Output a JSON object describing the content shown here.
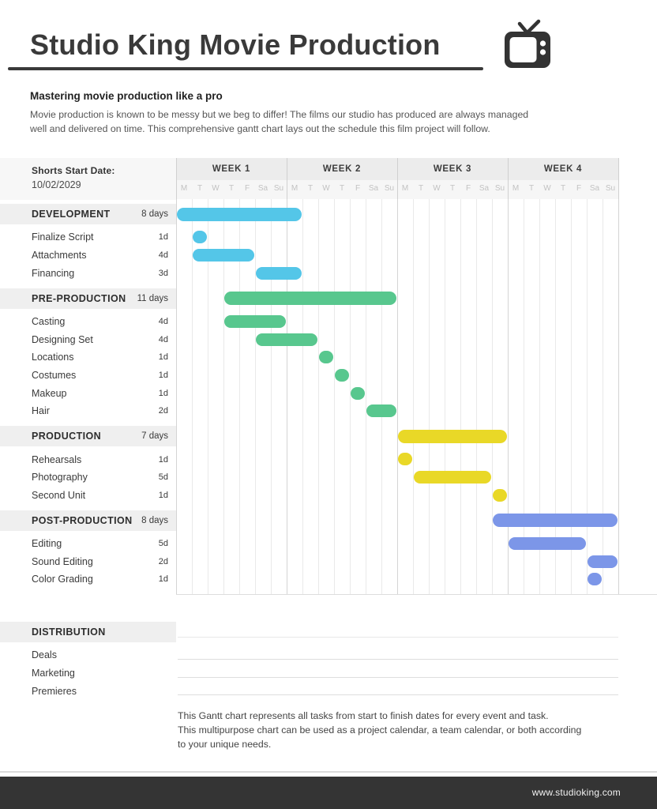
{
  "header": {
    "title": "Studio King Movie Production",
    "logo_icon": "tv-icon"
  },
  "intro": {
    "heading": "Mastering movie production like a pro",
    "body": "Movie production is known to be messy but we beg to differ! The films our studio has produced are always managed\nwell and delivered on time. This comprehensive gantt chart lays out the schedule this film project will follow."
  },
  "schedule_info": {
    "label": "Shorts Start Date:",
    "value": "10/02/2029"
  },
  "chart_data": {
    "type": "bar",
    "subtype": "gantt",
    "title": "Studio King Movie Production",
    "start_date": "10/02/2029",
    "weeks": [
      "WEEK 1",
      "WEEK 2",
      "WEEK 3",
      "WEEK 4"
    ],
    "day_labels": [
      "M",
      "T",
      "W",
      "T",
      "F",
      "Sa",
      "Su"
    ],
    "days_total": 28,
    "colors": {
      "development": "#54C6E8",
      "pre_production": "#58C78E",
      "production": "#E9D827",
      "post_production": "#7C96E8"
    },
    "rows": [
      {
        "kind": "section",
        "label": "DEVELOPMENT",
        "duration": "8 days",
        "start": 0,
        "days": 8,
        "color": "#54C6E8"
      },
      {
        "kind": "task",
        "label": "Finalize Script",
        "duration": "1d",
        "start": 1,
        "days": 1,
        "color": "#54C6E8"
      },
      {
        "kind": "task",
        "label": "Attachments",
        "duration": "4d",
        "start": 1,
        "days": 4,
        "color": "#54C6E8"
      },
      {
        "kind": "task",
        "label": "Financing",
        "duration": "3d",
        "start": 5,
        "days": 3,
        "color": "#54C6E8"
      },
      {
        "kind": "section",
        "label": "PRE-PRODUCTION",
        "duration": "11 days",
        "start": 3,
        "days": 11,
        "color": "#58C78E"
      },
      {
        "kind": "task",
        "label": "Casting",
        "duration": "4d",
        "start": 3,
        "days": 4,
        "color": "#58C78E"
      },
      {
        "kind": "task",
        "label": "Designing Set",
        "duration": "4d",
        "start": 5,
        "days": 4,
        "color": "#58C78E"
      },
      {
        "kind": "task",
        "label": "Locations",
        "duration": "1d",
        "start": 9,
        "days": 1,
        "color": "#58C78E"
      },
      {
        "kind": "task",
        "label": "Costumes",
        "duration": "1d",
        "start": 10,
        "days": 1,
        "color": "#58C78E"
      },
      {
        "kind": "task",
        "label": "Makeup",
        "duration": "1d",
        "start": 11,
        "days": 1,
        "color": "#58C78E"
      },
      {
        "kind": "task",
        "label": "Hair",
        "duration": "2d",
        "start": 12,
        "days": 2,
        "color": "#58C78E"
      },
      {
        "kind": "section",
        "label": "PRODUCTION",
        "duration": "7 days",
        "start": 14,
        "days": 7,
        "color": "#E9D827"
      },
      {
        "kind": "task",
        "label": "Rehearsals",
        "duration": "1d",
        "start": 14,
        "days": 1,
        "color": "#E9D827"
      },
      {
        "kind": "task",
        "label": "Photography",
        "duration": "5d",
        "start": 15,
        "days": 5,
        "color": "#E9D827"
      },
      {
        "kind": "task",
        "label": "Second Unit",
        "duration": "1d",
        "start": 20,
        "days": 1,
        "color": "#E9D827"
      },
      {
        "kind": "section",
        "label": "POST-PRODUCTION",
        "duration": "8 days",
        "start": 20,
        "days": 8,
        "color": "#7C96E8"
      },
      {
        "kind": "task",
        "label": "Editing",
        "duration": "5d",
        "start": 21,
        "days": 5,
        "color": "#7C96E8"
      },
      {
        "kind": "task",
        "label": "Sound Editing",
        "duration": "2d",
        "start": 26,
        "days": 2,
        "color": "#7C96E8"
      },
      {
        "kind": "task",
        "label": "Color Grading",
        "duration": "1d",
        "start": 26,
        "days": 1,
        "color": "#7C96E8"
      }
    ],
    "distribution": {
      "label": "DISTRIBUTION",
      "tasks": [
        "Deals",
        "Marketing",
        "Premieres"
      ]
    }
  },
  "note": "This Gantt chart represents all tasks from start to finish dates for every event and task.\nThis multipurpose chart can be used as a project calendar, a team calendar, or both according\nto your unique needs.",
  "footer": {
    "website": "www.studioking.com"
  }
}
